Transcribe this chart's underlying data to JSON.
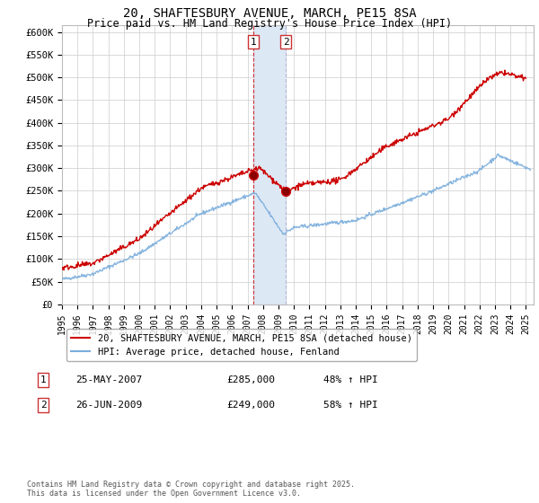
{
  "title": "20, SHAFTESBURY AVENUE, MARCH, PE15 8SA",
  "subtitle": "Price paid vs. HM Land Registry's House Price Index (HPI)",
  "ylabel_ticks": [
    "£0",
    "£50K",
    "£100K",
    "£150K",
    "£200K",
    "£250K",
    "£300K",
    "£350K",
    "£400K",
    "£450K",
    "£500K",
    "£550K",
    "£600K"
  ],
  "ytick_values": [
    0,
    50000,
    100000,
    150000,
    200000,
    250000,
    300000,
    350000,
    400000,
    450000,
    500000,
    550000,
    600000
  ],
  "ylim": [
    0,
    615000
  ],
  "xlim_start": 1995.0,
  "xlim_end": 2025.5,
  "hpi_color": "#7aaddc",
  "price_color": "#cc0000",
  "marker1_date": 2007.38,
  "marker1_price": 285000,
  "marker2_date": 2009.48,
  "marker2_price": 249000,
  "marker1_label": "1",
  "marker2_label": "2",
  "annotation1_date": "25-MAY-2007",
  "annotation1_price": "£285,000",
  "annotation1_hpi": "48% ↑ HPI",
  "annotation2_date": "26-JUN-2009",
  "annotation2_price": "£249,000",
  "annotation2_hpi": "58% ↑ HPI",
  "legend_label1": "20, SHAFTESBURY AVENUE, MARCH, PE15 8SA (detached house)",
  "legend_label2": "HPI: Average price, detached house, Fenland",
  "footer": "Contains HM Land Registry data © Crown copyright and database right 2025.\nThis data is licensed under the Open Government Licence v3.0.",
  "background_color": "#ffffff",
  "grid_color": "#cccccc",
  "shade_color": "#dde8f5"
}
